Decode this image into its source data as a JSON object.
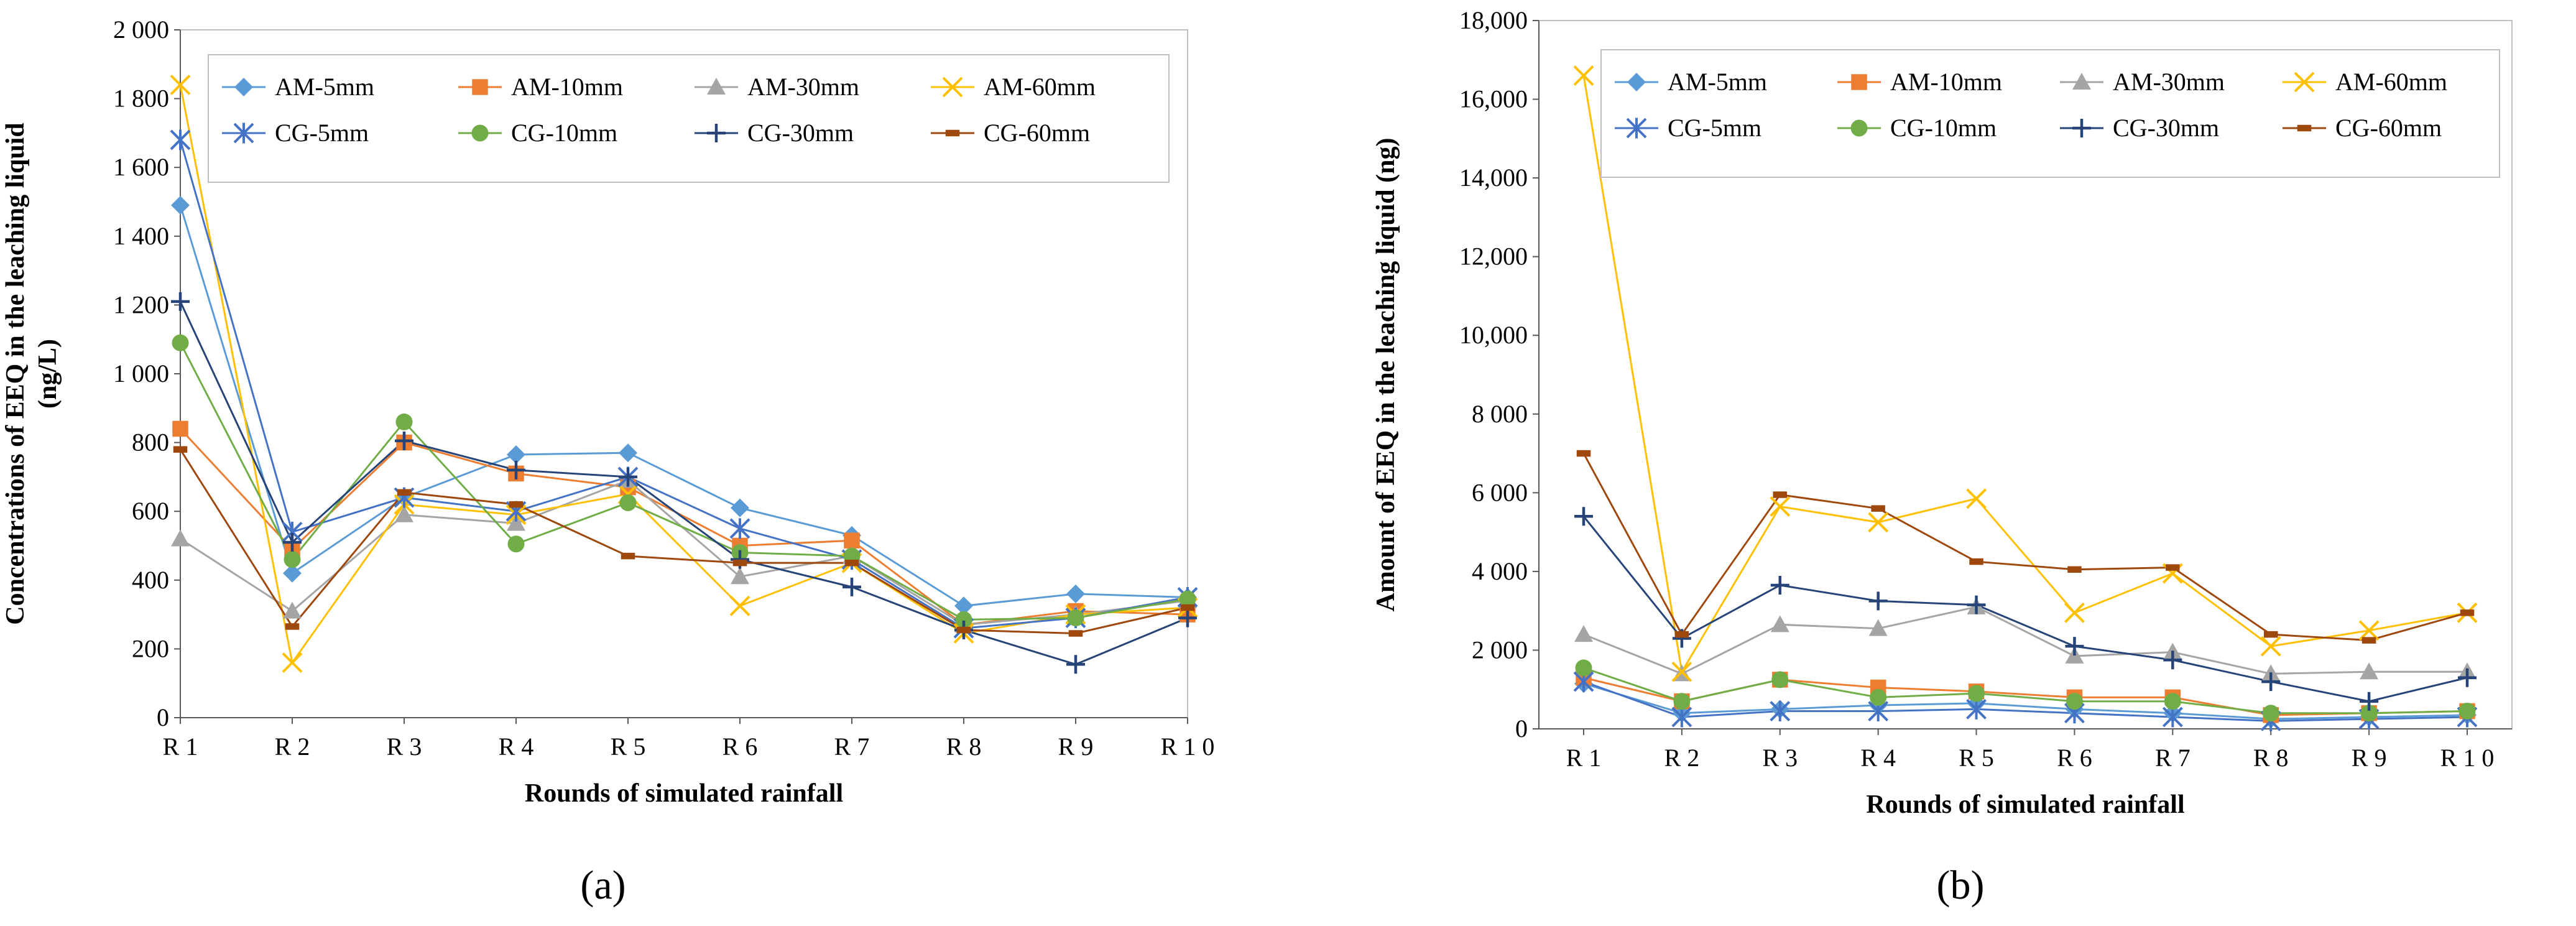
{
  "chart_data": [
    {
      "type": "line",
      "panel_label": "(a)",
      "xlabel": "Rounds of simulated rainfall",
      "ylabel_lines": [
        "Concentrations of EEQ in the leaching liquid",
        "(ng/L)"
      ],
      "categories": [
        "R 1",
        "R 2",
        "R 3",
        "R 4",
        "R 5",
        "R 6",
        "R 7",
        "R 8",
        "R 9",
        "R 1 0"
      ],
      "ylim": [
        0,
        2000
      ],
      "yticks": [
        0,
        200,
        400,
        600,
        800,
        1000,
        1200,
        1400,
        1600,
        1800,
        2000
      ],
      "ytick_labels": [
        "0",
        "200",
        "400",
        "600",
        "800",
        "1 000",
        "1 200",
        "1 400",
        "1 600",
        "1 800",
        "2 000"
      ],
      "grid": false,
      "legend_placement": "top",
      "series": [
        {
          "name": "AM-5mm",
          "color": "#5b9bd5",
          "marker": "diamond",
          "values": [
            1490,
            420,
            640,
            765,
            770,
            610,
            530,
            325,
            360,
            350
          ]
        },
        {
          "name": "AM-10mm",
          "color": "#ed7d31",
          "marker": "square",
          "values": [
            840,
            490,
            800,
            710,
            670,
            500,
            515,
            270,
            310,
            300
          ]
        },
        {
          "name": "AM-30mm",
          "color": "#a5a5a5",
          "marker": "triangle",
          "values": [
            520,
            310,
            590,
            565,
            690,
            410,
            470,
            270,
            300,
            340
          ]
        },
        {
          "name": "AM-60mm",
          "color": "#ffc000",
          "marker": "x",
          "values": [
            1840,
            160,
            620,
            590,
            650,
            325,
            450,
            245,
            300,
            320
          ]
        },
        {
          "name": "CG-5mm",
          "color": "#4472c4",
          "marker": "asterisk",
          "values": [
            1680,
            540,
            640,
            600,
            700,
            550,
            460,
            260,
            290,
            350
          ]
        },
        {
          "name": "CG-10mm",
          "color": "#70ad47",
          "marker": "circle",
          "values": [
            1090,
            460,
            860,
            505,
            625,
            480,
            470,
            285,
            290,
            345
          ]
        },
        {
          "name": "CG-30mm",
          "color": "#264478",
          "marker": "plus",
          "values": [
            1210,
            510,
            805,
            720,
            700,
            460,
            380,
            255,
            155,
            290
          ]
        },
        {
          "name": "CG-60mm",
          "color": "#9e480e",
          "marker": "dash",
          "values": [
            780,
            265,
            655,
            620,
            470,
            450,
            450,
            255,
            245,
            320
          ]
        }
      ]
    },
    {
      "type": "line",
      "panel_label": "(b)",
      "xlabel": "Rounds of simulated rainfall",
      "ylabel_lines": [
        "Amount of EEQ in the leaching liquid (ng)"
      ],
      "categories": [
        "R 1",
        "R 2",
        "R 3",
        "R 4",
        "R 5",
        "R 6",
        "R 7",
        "R 8",
        "R 9",
        "R 1 0"
      ],
      "ylim": [
        0,
        18000
      ],
      "yticks": [
        0,
        2000,
        4000,
        6000,
        8000,
        10000,
        12000,
        14000,
        16000,
        18000
      ],
      "ytick_labels": [
        "0",
        "2 000",
        "4 000",
        "6 000",
        "8 000",
        "10,000",
        "12,000",
        "14,000",
        "16,000",
        "18,000"
      ],
      "grid": false,
      "legend_placement": "top",
      "series": [
        {
          "name": "AM-5mm",
          "color": "#5b9bd5",
          "marker": "diamond",
          "values": [
            1150,
            400,
            500,
            600,
            650,
            500,
            400,
            250,
            300,
            350
          ]
        },
        {
          "name": "AM-10mm",
          "color": "#ed7d31",
          "marker": "square",
          "values": [
            1300,
            700,
            1250,
            1050,
            950,
            800,
            800,
            350,
            400,
            450
          ]
        },
        {
          "name": "AM-30mm",
          "color": "#a5a5a5",
          "marker": "triangle",
          "values": [
            2400,
            1400,
            2650,
            2550,
            3100,
            1850,
            1950,
            1400,
            1450,
            1450
          ]
        },
        {
          "name": "AM-60mm",
          "color": "#ffc000",
          "marker": "x",
          "values": [
            16600,
            1450,
            5650,
            5250,
            5850,
            2950,
            3950,
            2100,
            2500,
            2950
          ]
        },
        {
          "name": "CG-5mm",
          "color": "#4472c4",
          "marker": "asterisk",
          "values": [
            1200,
            300,
            450,
            450,
            500,
            400,
            300,
            200,
            250,
            300
          ]
        },
        {
          "name": "CG-10mm",
          "color": "#70ad47",
          "marker": "circle",
          "values": [
            1550,
            700,
            1250,
            800,
            900,
            700,
            700,
            400,
            400,
            450
          ]
        },
        {
          "name": "CG-30mm",
          "color": "#264478",
          "marker": "plus",
          "values": [
            5400,
            2300,
            3650,
            3250,
            3150,
            2100,
            1750,
            1200,
            700,
            1300
          ]
        },
        {
          "name": "CG-60mm",
          "color": "#9e480e",
          "marker": "dash",
          "values": [
            7000,
            2400,
            5950,
            5600,
            4250,
            4050,
            4100,
            2400,
            2250,
            2950
          ]
        }
      ]
    }
  ]
}
